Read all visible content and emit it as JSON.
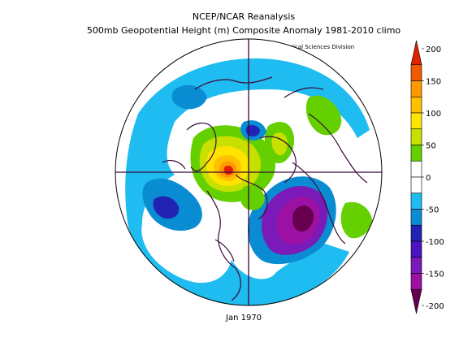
{
  "title_line1": "NCEP/NCAR Reanalysis",
  "title_line2": "500mb Geopotential Height (m) Composite Anomaly 1981-2010 climo",
  "credit": "NOAA/ESRL Physical Sciences Division",
  "caption": "Jan 1970",
  "colorbar": {
    "labels": [
      "200",
      "150",
      "100",
      "50",
      "0",
      "-50",
      "-100",
      "-150",
      "-200"
    ],
    "colors": [
      "#e02000",
      "#f05a00",
      "#ff9a00",
      "#ffc000",
      "#ffe400",
      "#c8e000",
      "#64d000",
      "#ffffff",
      "#ffffff",
      "#1ebcf0",
      "#0a8cd2",
      "#2222b4",
      "#4a14c0",
      "#7a1ab8",
      "#9c10a4",
      "#66004e"
    ]
  }
}
